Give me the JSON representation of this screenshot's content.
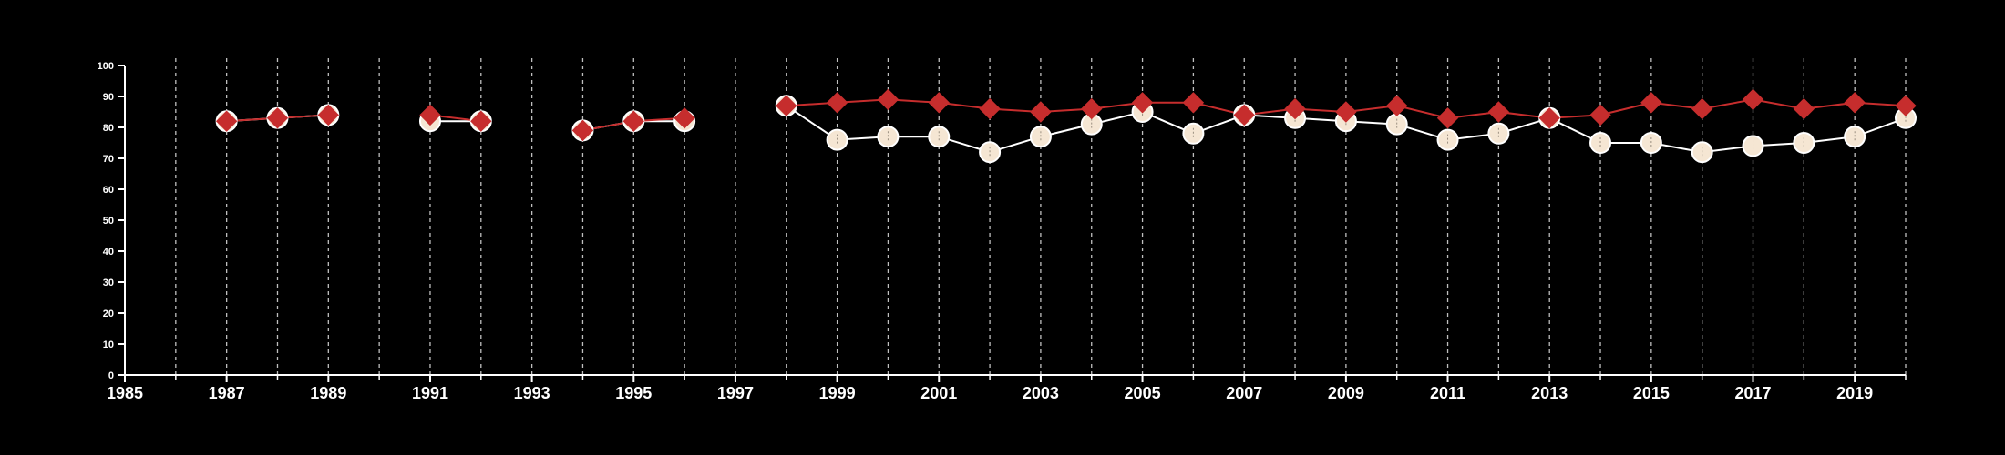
{
  "colors": {
    "background": "#000000",
    "axis": "#ffffff",
    "grid": "#bfbfbf",
    "series_a_marker": "#f5e6d3",
    "series_a_line": "#ffffff",
    "series_b_marker": "#c62d2d",
    "series_b_line": "#c62d2d"
  },
  "chart_data": {
    "type": "line",
    "title": "",
    "xlabel": "",
    "ylabel": "",
    "xlim": [
      1985,
      2020
    ],
    "ylim": [
      0,
      100
    ],
    "yticks": [
      0,
      10,
      20,
      30,
      40,
      50,
      60,
      70,
      80,
      90,
      100
    ],
    "xticks": [
      1985,
      1987,
      1989,
      1991,
      1993,
      1995,
      1997,
      1999,
      2001,
      2003,
      2005,
      2007,
      2009,
      2011,
      2013,
      2015,
      2017,
      2019
    ],
    "grid": "vertical dashed lines every year",
    "series": [
      {
        "marker": "circle",
        "segments": [
          [
            [
              1987,
              82
            ],
            [
              1988,
              83
            ],
            [
              1989,
              84
            ]
          ],
          [
            [
              1991,
              82
            ],
            [
              1992,
              82
            ]
          ],
          [
            [
              1994,
              79
            ],
            [
              1995,
              82
            ],
            [
              1996,
              82
            ]
          ],
          [
            [
              1998,
              87
            ],
            [
              1999,
              76
            ],
            [
              2000,
              77
            ],
            [
              2001,
              77
            ],
            [
              2002,
              72
            ],
            [
              2003,
              77
            ],
            [
              2004,
              81
            ],
            [
              2005,
              85
            ],
            [
              2006,
              78
            ],
            [
              2007,
              84
            ],
            [
              2008,
              83
            ],
            [
              2009,
              82
            ],
            [
              2010,
              81
            ],
            [
              2011,
              76
            ],
            [
              2012,
              78
            ],
            [
              2013,
              83
            ],
            [
              2014,
              75
            ],
            [
              2015,
              75
            ],
            [
              2016,
              72
            ],
            [
              2017,
              74
            ],
            [
              2018,
              75
            ],
            [
              2019,
              77
            ],
            [
              2020,
              83
            ]
          ]
        ]
      },
      {
        "marker": "diamond",
        "segments": [
          [
            [
              1987,
              82
            ],
            [
              1988,
              83
            ],
            [
              1989,
              84
            ]
          ],
          [
            [
              1991,
              84
            ],
            [
              1992,
              82
            ]
          ],
          [
            [
              1994,
              79
            ],
            [
              1995,
              82
            ],
            [
              1996,
              83
            ]
          ],
          [
            [
              1998,
              87
            ],
            [
              1999,
              88
            ],
            [
              2000,
              89
            ],
            [
              2001,
              88
            ],
            [
              2002,
              86
            ],
            [
              2003,
              85
            ],
            [
              2004,
              86
            ],
            [
              2005,
              88
            ],
            [
              2006,
              88
            ],
            [
              2007,
              84
            ],
            [
              2008,
              86
            ],
            [
              2009,
              85
            ],
            [
              2010,
              87
            ],
            [
              2011,
              83
            ],
            [
              2012,
              85
            ],
            [
              2013,
              83
            ],
            [
              2014,
              84
            ],
            [
              2015,
              88
            ],
            [
              2016,
              86
            ],
            [
              2017,
              89
            ],
            [
              2018,
              86
            ],
            [
              2019,
              88
            ],
            [
              2020,
              87
            ]
          ]
        ]
      }
    ]
  }
}
